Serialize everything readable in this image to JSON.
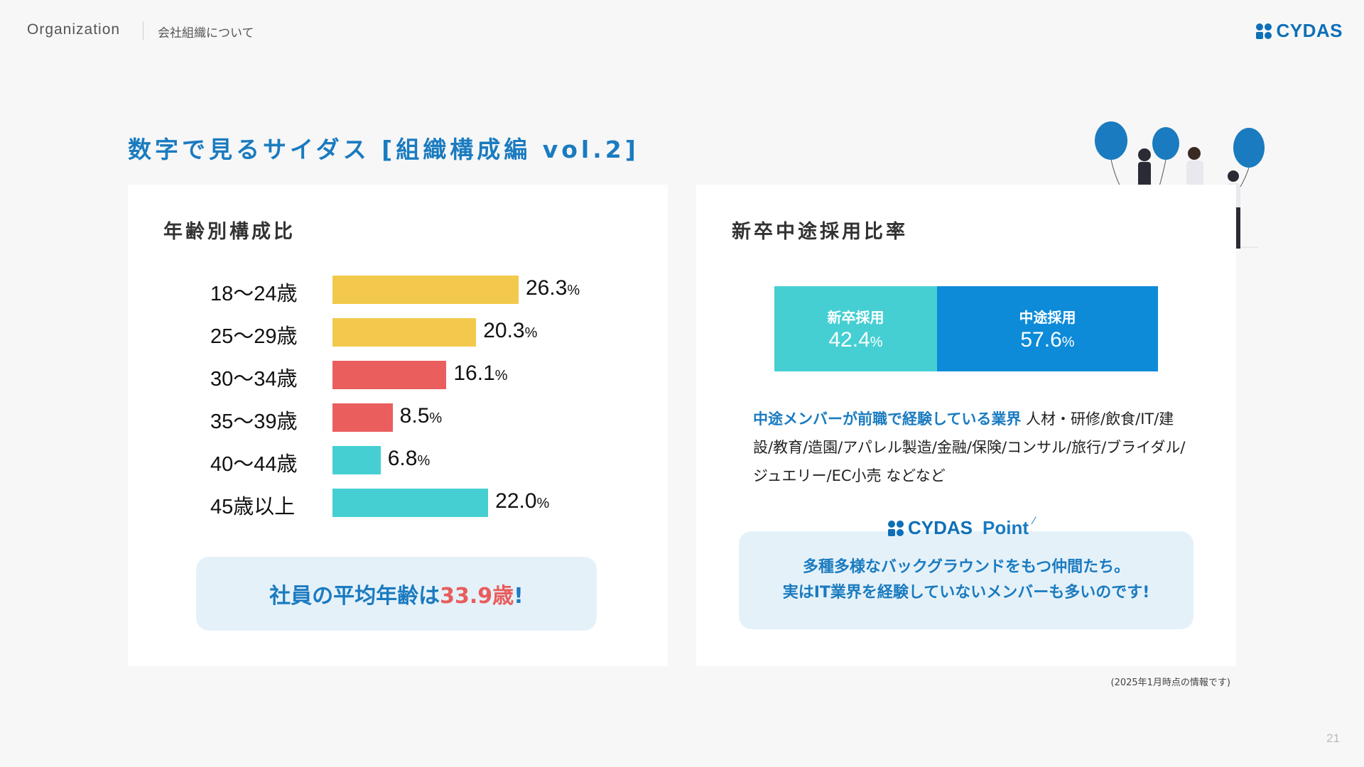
{
  "header": {
    "section": "Organization",
    "subtitle": "会社組織について",
    "logo_text": "CYDAS"
  },
  "title": "数字で見るサイダス [組織構成編 vol.2]",
  "age_chart": {
    "title": "年齢別構成比",
    "unit": "%",
    "avg_prefix": "社員の平均年齢は",
    "avg_value": "33.9歳",
    "avg_suffix": "!"
  },
  "hire_chart": {
    "title": "新卒中途採用比率",
    "unit": "%",
    "description_lead": "中途メンバーが前職で経験している業界",
    "description_rest": " 人材・研修/飲食/IT/建設/教育/造園/アパレル製造/金融/保険/コンサル/旅行/ブライダル/ジュエリー/EC小売 などなど"
  },
  "point": {
    "brand": "CYDAS",
    "label": "Point",
    "line1": "多種多様なバックグラウンドをもつ仲間たち。",
    "line2": "実はIT業界を経験していないメンバーも多いのです!"
  },
  "footnote": "(2025年1月時点の情報です)",
  "page_number": "21",
  "chart_data": [
    {
      "type": "bar",
      "orientation": "horizontal",
      "title": "年齢別構成比",
      "categories": [
        "18〜24歳",
        "25〜29歳",
        "30〜34歳",
        "35〜39歳",
        "40〜44歳",
        "45歳以上"
      ],
      "values": [
        26.3,
        20.3,
        16.1,
        8.5,
        6.8,
        22.0
      ],
      "value_labels": [
        "26.3",
        "20.3",
        "16.1",
        "8.5",
        "6.8",
        "22.0"
      ],
      "colors": [
        "#f2c94c",
        "#f2c94c",
        "#eb5e5e",
        "#eb5e5e",
        "#45cfd3",
        "#45cfd3"
      ],
      "grid": false
    },
    {
      "type": "bar",
      "orientation": "stacked-horizontal",
      "title": "新卒中途採用比率",
      "series": [
        {
          "name": "新卒採用",
          "values": [
            42.4
          ],
          "label": "42.4",
          "color": "#45cfd3"
        },
        {
          "name": "中途採用",
          "values": [
            57.6
          ],
          "label": "57.6",
          "color": "#0d8bd9"
        }
      ]
    }
  ]
}
